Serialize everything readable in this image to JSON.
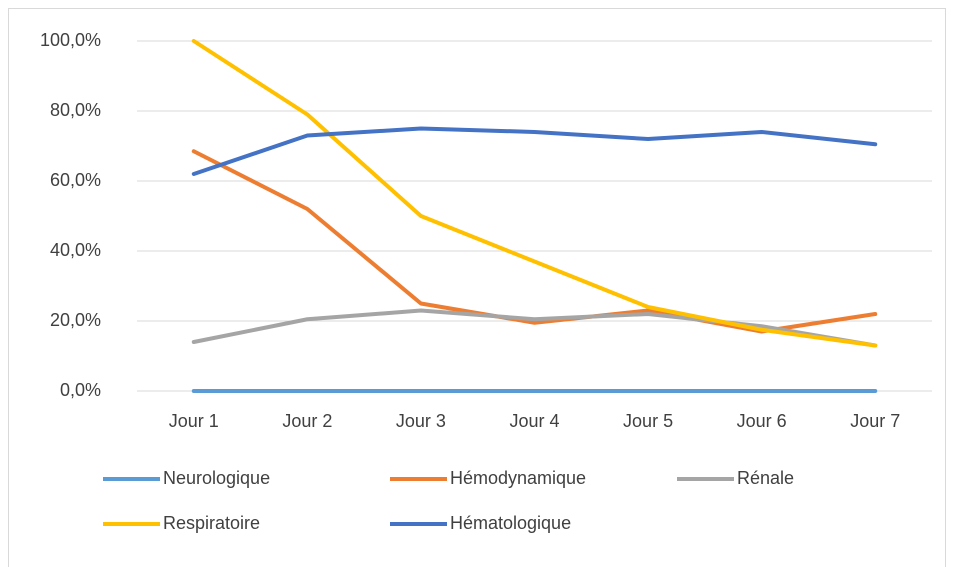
{
  "chart_data": {
    "type": "line",
    "categories": [
      "Jour 1",
      "Jour 2",
      "Jour 3",
      "Jour 4",
      "Jour 5",
      "Jour 6",
      "Jour 7"
    ],
    "series": [
      {
        "name": "Neurologique",
        "color": "#5b9bd5",
        "values": [
          0,
          0,
          0,
          0,
          0,
          0,
          0
        ]
      },
      {
        "name": "Hémodynamique",
        "color": "#ed7d31",
        "values": [
          68.5,
          52,
          25,
          19.5,
          23,
          17,
          22
        ]
      },
      {
        "name": "Rénale",
        "color": "#a5a5a5",
        "values": [
          14,
          20.5,
          23,
          20.5,
          22,
          18.5,
          13
        ]
      },
      {
        "name": "Respiratoire",
        "color": "#ffc000",
        "values": [
          100,
          79,
          50,
          37,
          24,
          17.5,
          13
        ]
      },
      {
        "name": "Hématologique",
        "color": "#4472c4",
        "values": [
          62,
          73,
          75,
          74,
          72,
          74,
          70.5
        ]
      }
    ],
    "ylim": [
      0,
      100
    ],
    "yticks": [
      {
        "value": 0,
        "label": "0,0%"
      },
      {
        "value": 20,
        "label": "20,0%"
      },
      {
        "value": 40,
        "label": "40,0%"
      },
      {
        "value": 60,
        "label": "60,0%"
      },
      {
        "value": 80,
        "label": "80,0%"
      },
      {
        "value": 100,
        "label": "100,0%"
      }
    ],
    "grid": true,
    "legend": "bottom"
  }
}
